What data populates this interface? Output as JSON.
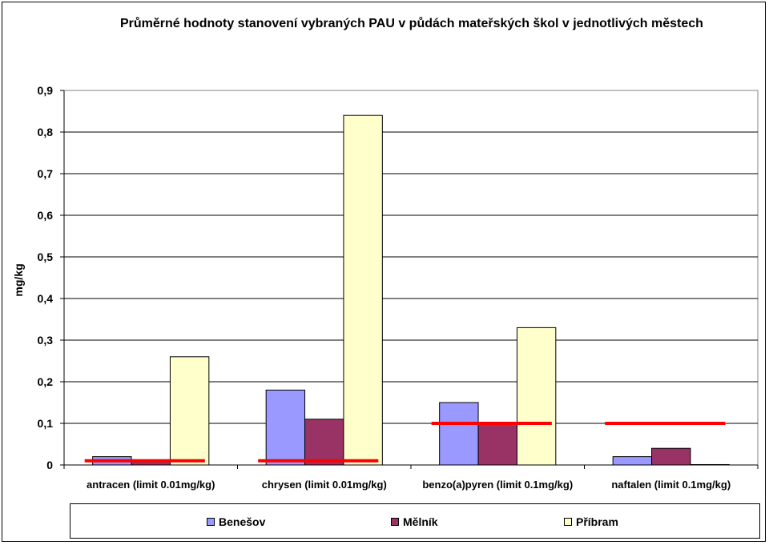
{
  "chart_data": {
    "type": "bar",
    "title": "Průměrné hodnoty stanovení vybraných PAU v půdách mateřských škol  v jednotlivých městech",
    "xlabel": "",
    "ylabel": "mg/kg",
    "ylim": [
      0,
      0.9
    ],
    "yticks": [
      "0",
      "0,1",
      "0,2",
      "0,3",
      "0,4",
      "0,5",
      "0,6",
      "0,7",
      "0,8",
      "0,9"
    ],
    "grid": true,
    "legend_position": "bottom",
    "categories": [
      "antracen (limit 0.01mg/kg)",
      "chrysen (limit 0.01mg/kg)",
      "benzo(a)pyren (limit 0.1mg/kg)",
      "naftalen (limit 0.1mg/kg)"
    ],
    "series": [
      {
        "name": "Benešov",
        "color": "#9999FF",
        "values": [
          0.02,
          0.18,
          0.15,
          0.02
        ]
      },
      {
        "name": "Mělník",
        "color": "#993366",
        "values": [
          0.01,
          0.11,
          0.1,
          0.04
        ]
      },
      {
        "name": "Příbram",
        "color": "#FFFFCC",
        "values": [
          0.26,
          0.84,
          0.33,
          0.001
        ]
      }
    ],
    "limits": {
      "color": "#FF0000",
      "values": [
        0.01,
        0.01,
        0.1,
        0.1
      ]
    }
  }
}
